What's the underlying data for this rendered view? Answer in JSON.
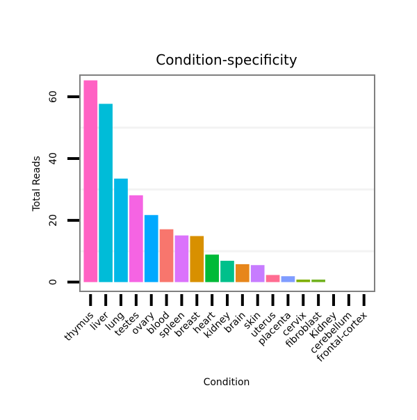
{
  "chart_data": {
    "type": "bar",
    "title": "Condition-specificity",
    "xlabel": "Condition",
    "ylabel": "Total Reads",
    "ylim": [
      -3,
      67
    ],
    "yticks": [
      0,
      20,
      40,
      60
    ],
    "categories": [
      "thymus",
      "liver",
      "lung",
      "testes",
      "ovary",
      "blood",
      "spleen",
      "breast",
      "heart",
      "kidney",
      "brain",
      "skin",
      "uterus",
      "placenta",
      "cervix",
      "fibroblast",
      "Kidney",
      "cerebellum",
      "frontal-cortex"
    ],
    "values": [
      65.3,
      57.7,
      33.5,
      28.1,
      21.7,
      17.1,
      15.1,
      14.9,
      8.9,
      6.9,
      5.8,
      5.5,
      2.3,
      1.9,
      0.8,
      0.8,
      0,
      0,
      0
    ],
    "colors": [
      "#ff61c3",
      "#00bcd8",
      "#00b8e7",
      "#f564e3",
      "#00a9ff",
      "#f8766d",
      "#db72fb",
      "#d89000",
      "#00ba38",
      "#00c08b",
      "#e7861b",
      "#c77cff",
      "#ff6c91",
      "#7f9cff",
      "#7cae00",
      "#6fb11c",
      "#a3a500",
      "#39b600",
      "#00bf7d"
    ],
    "grid": true,
    "legend": "none"
  }
}
